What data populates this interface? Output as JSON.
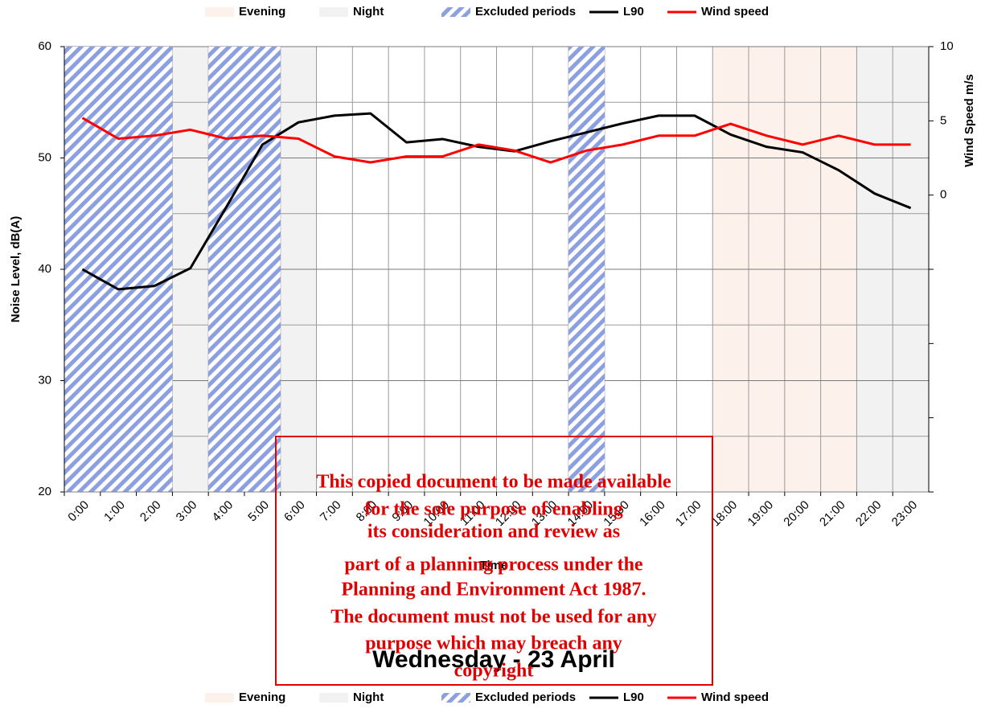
{
  "chart_data": {
    "type": "line",
    "title": "Wednesday - 23 April",
    "x_label": "Time",
    "y_label": "Noise Level, dB(A)",
    "y2_label": "Wind Speed m/s",
    "categories": [
      "0:00",
      "1:00",
      "2:00",
      "3:00",
      "4:00",
      "5:00",
      "6:00",
      "7:00",
      "8:00",
      "9:00",
      "10:00",
      "11:00",
      "12:00",
      "13:00",
      "14:00",
      "15:00",
      "16:00",
      "17:00",
      "18:00",
      "19:00",
      "20:00",
      "21:00",
      "22:00",
      "23:00"
    ],
    "series": [
      {
        "name": "L90",
        "color": "#000000",
        "values": [
          40.0,
          38.2,
          38.5,
          40.1,
          45.6,
          51.2,
          53.2,
          53.8,
          54.0,
          51.4,
          51.7,
          51.0,
          50.6,
          51.5,
          52.3,
          53.1,
          53.8,
          53.8,
          52.1,
          51.0,
          50.5,
          48.9,
          46.8,
          45.5
        ]
      },
      {
        "name": "Wind speed",
        "color": "#ff0000",
        "axis": "y2",
        "values": [
          5.2,
          3.8,
          4.0,
          4.4,
          3.8,
          4.0,
          3.8,
          2.6,
          2.2,
          2.6,
          2.6,
          3.4,
          3.0,
          2.2,
          3.0,
          3.4,
          4.0,
          4.0,
          4.8,
          4.0,
          3.4,
          4.0,
          3.4,
          3.4
        ]
      }
    ],
    "shaded_periods": [
      {
        "name": "Evening",
        "color": "#fdf1ec",
        "ranges": [
          [
            18,
            22
          ]
        ]
      },
      {
        "name": "Night",
        "color": "#f2f2f2",
        "ranges": [
          [
            0,
            7
          ],
          [
            22,
            24
          ]
        ]
      },
      {
        "name": "Excluded periods",
        "color": "#8c9fe0",
        "hatched": true,
        "ranges": [
          [
            0,
            3
          ],
          [
            4,
            6
          ],
          [
            14,
            15
          ]
        ]
      }
    ],
    "ylim": [
      20,
      60
    ],
    "yticks": [
      20,
      30,
      40,
      50,
      60
    ],
    "yminorticks": [
      25,
      35,
      45,
      55
    ],
    "y2lim": [
      -20,
      10
    ],
    "y2ticks": [
      0,
      5,
      10
    ],
    "y2minorticks": [
      -20,
      -15,
      -10,
      -5
    ],
    "grid": true,
    "legend_positions": [
      "top",
      "bottom"
    ],
    "annotations": [
      "This copied document to be made available",
      "for the sole purpose of enabling",
      "its consideration and review as",
      "part of a planning process under the",
      "Planning and Environment Act 1987.",
      "The document must not be used for any",
      "purpose which may breach any",
      "copyright"
    ]
  }
}
